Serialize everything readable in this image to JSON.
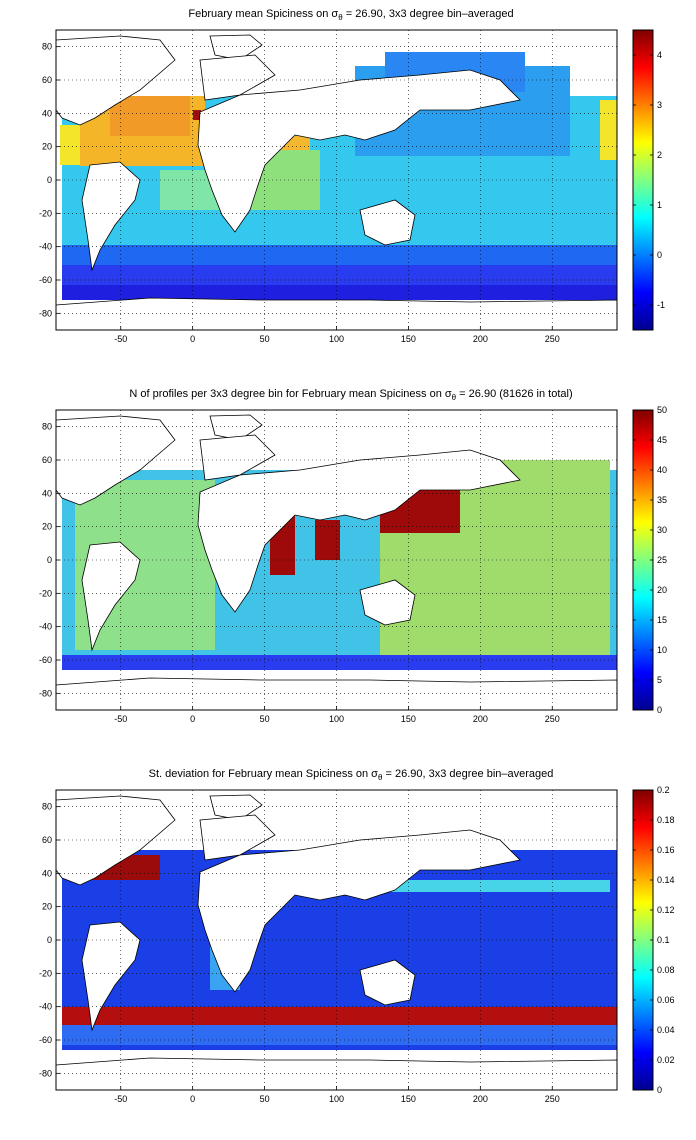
{
  "x_ticks": [
    "-50",
    "0",
    "50",
    "100",
    "150",
    "200",
    "250"
  ],
  "y_ticks": [
    "80",
    "60",
    "40",
    "20",
    "0",
    "-20",
    "-40",
    "-60",
    "-80"
  ],
  "panels": [
    {
      "id": "mean",
      "title_pre": "February mean Spiciness on σ",
      "title_sub": "θ",
      "title_post": " = 26.90, 3x3 degree bin–averaged",
      "cbar_ticks": [
        "4",
        "3",
        "2",
        "1",
        "0",
        "-1"
      ]
    },
    {
      "id": "count",
      "title_pre": "N of profiles per 3x3 degree bin for February mean Spiciness on σ",
      "title_sub": "θ",
      "title_post": " = 26.90 (81626 in total)",
      "cbar_ticks": [
        "50",
        "45",
        "40",
        "35",
        "30",
        "25",
        "20",
        "15",
        "10",
        "5",
        "0"
      ]
    },
    {
      "id": "std",
      "title_pre": "St. deviation for February mean Spiciness on σ",
      "title_sub": "θ",
      "title_post": " = 26.90, 3x3 degree bin–averaged",
      "cbar_ticks": [
        "0.2",
        "0.18",
        "0.16",
        "0.14",
        "0.12",
        "0.1",
        "0.08",
        "0.06",
        "0.04",
        "0.02",
        "0"
      ]
    }
  ],
  "chart_data": [
    {
      "type": "heatmap",
      "title": "February mean Spiciness on σθ = 26.90, 3x3 degree bin–averaged",
      "xlim": [
        -95,
        295
      ],
      "ylim": [
        -90,
        90
      ],
      "x_ticks": [
        -50,
        0,
        50,
        100,
        150,
        200,
        250
      ],
      "y_ticks": [
        -80,
        -60,
        -40,
        -20,
        0,
        20,
        40,
        60,
        80
      ],
      "colorbar": {
        "range": [
          -1.5,
          4.5
        ],
        "ticks": [
          -1,
          0,
          1,
          2,
          3,
          4
        ],
        "colormap": "jet"
      },
      "grid": true
    },
    {
      "type": "heatmap",
      "title": "N of profiles per 3x3 degree bin for February mean Spiciness on σθ = 26.90 (81626 in total)",
      "xlim": [
        -95,
        295
      ],
      "ylim": [
        -90,
        90
      ],
      "x_ticks": [
        -50,
        0,
        50,
        100,
        150,
        200,
        250
      ],
      "y_ticks": [
        -80,
        -60,
        -40,
        -20,
        0,
        20,
        40,
        60,
        80
      ],
      "colorbar": {
        "range": [
          0,
          50
        ],
        "ticks": [
          0,
          5,
          10,
          15,
          20,
          25,
          30,
          35,
          40,
          45,
          50
        ],
        "colormap": "jet"
      },
      "total_profiles": 81626,
      "grid": true
    },
    {
      "type": "heatmap",
      "title": "St. deviation for February mean Spiciness on σθ = 26.90, 3x3 degree bin–averaged",
      "xlim": [
        -95,
        295
      ],
      "ylim": [
        -90,
        90
      ],
      "x_ticks": [
        -50,
        0,
        50,
        100,
        150,
        200,
        250
      ],
      "y_ticks": [
        -80,
        -60,
        -40,
        -20,
        0,
        20,
        40,
        60,
        80
      ],
      "colorbar": {
        "range": [
          0,
          0.2
        ],
        "ticks": [
          0,
          0.02,
          0.04,
          0.06,
          0.08,
          0.1,
          0.12,
          0.14,
          0.16,
          0.18,
          0.2
        ],
        "colormap": "jet"
      },
      "grid": true
    }
  ]
}
